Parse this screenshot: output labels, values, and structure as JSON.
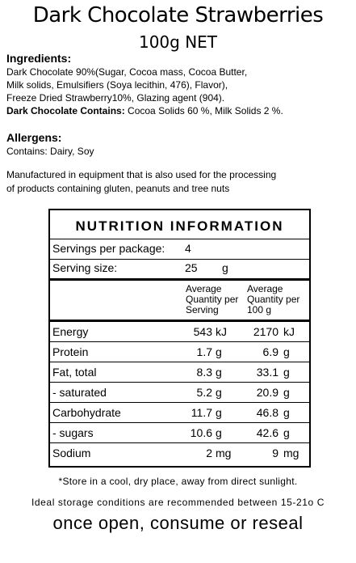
{
  "title": "Dark Chocolate Strawberries",
  "net": "100g NET",
  "ingredients": {
    "heading": "Ingredients:",
    "lines": [
      "Dark Chocolate 90%(Sugar, Cocoa mass, Cocoa Butter,",
      "Milk solids, Emulsifiers (Soya lecithin, 476), Flavor),",
      "Freeze Dried Strawberry10%, Glazing agent (904)."
    ],
    "contains_label": "Dark Chocolate Contains:",
    "contains_text": "Cocoa Solids 60 %, Milk Solids 2 %."
  },
  "allergens": {
    "heading": "Allergens:",
    "text": "Contains: Dairy, Soy"
  },
  "manufactured": [
    "Manufactured in equipment that is also used for the processing",
    "of products containing gluten, peanuts and tree nuts"
  ],
  "nutrition": {
    "title": "NUTRITION INFORMATION",
    "servings_label": "Servings per package:",
    "servings": 4,
    "serving_size_label": "Serving size:",
    "serving_size": 25,
    "serving_size_unit": "g",
    "headers": [
      [
        "Average",
        "Quantity per",
        "Serving"
      ],
      [
        "Average",
        "Quantity per",
        "100 g"
      ]
    ],
    "rows": [
      {
        "name": "Energy",
        "serving": 543,
        "serving_unit": "kJ",
        "per100": 2170,
        "per100_unit": "kJ"
      },
      {
        "name": "Protein",
        "serving": 1.7,
        "serving_unit": "g",
        "per100": 6.9,
        "per100_unit": "g"
      },
      {
        "name": "Fat, total",
        "serving": 8.3,
        "serving_unit": "g",
        "per100": 33.1,
        "per100_unit": "g"
      },
      {
        "name": "- saturated",
        "serving": 5.2,
        "serving_unit": "g",
        "per100": 20.9,
        "per100_unit": "g"
      },
      {
        "name": "Carbohydrate",
        "serving": 11.7,
        "serving_unit": "g",
        "per100": 46.8,
        "per100_unit": "g"
      },
      {
        "name": "- sugars",
        "serving": 10.6,
        "serving_unit": "g",
        "per100": 42.6,
        "per100_unit": "g"
      },
      {
        "name": "Sodium",
        "serving": 2,
        "serving_unit": "mg",
        "per100": 9,
        "per100_unit": "mg"
      }
    ]
  },
  "footer": [
    "*Store in a cool, dry place, away from direct sunlight.",
    "Ideal storage conditions are recommended between 15-21o C",
    "once open, consume or reseal"
  ]
}
